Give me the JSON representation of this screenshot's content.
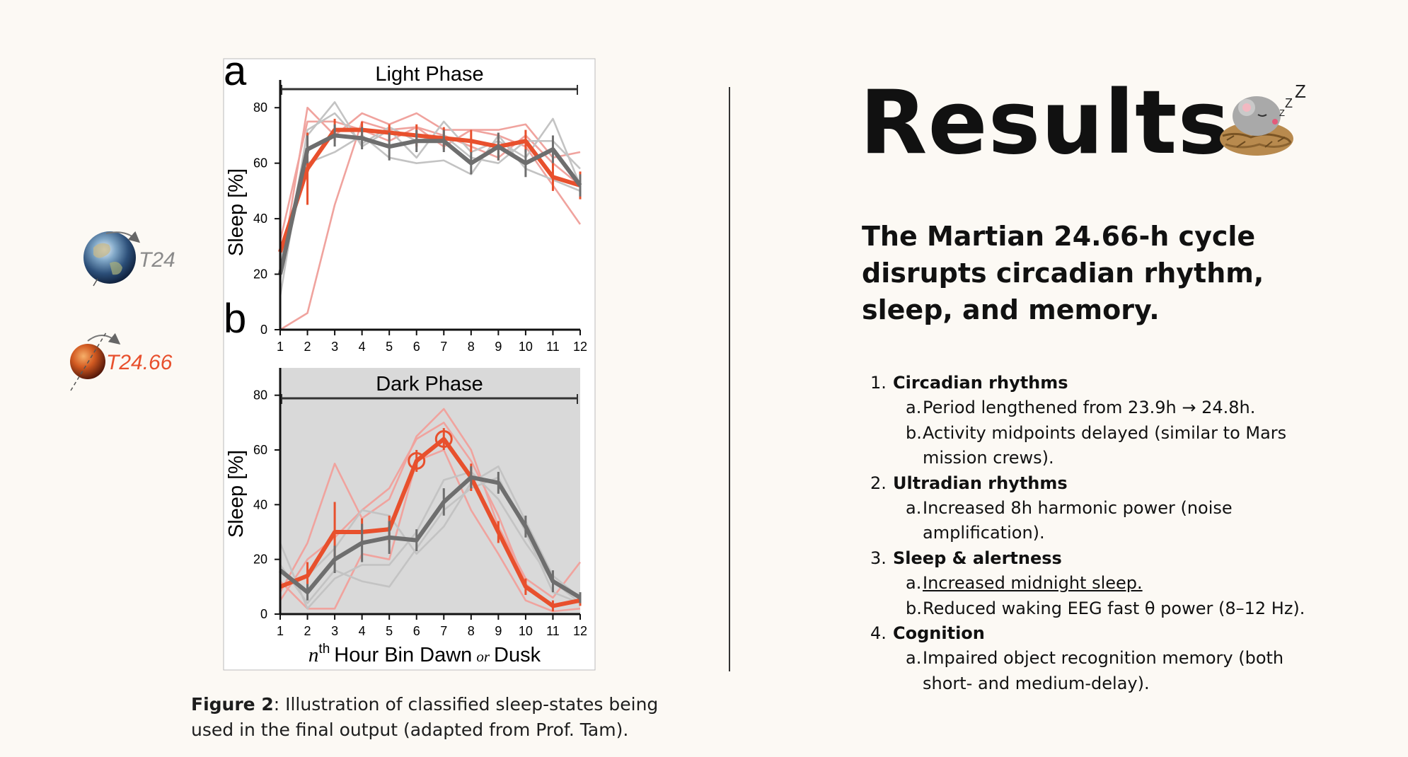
{
  "results_title": "Results",
  "subtitle": "The Martian 24.66-h cycle disrupts circadian rhythm, sleep, and memory.",
  "findings": [
    {
      "num": "1.",
      "title": "Circadian rhythms",
      "items": [
        {
          "letter": "a.",
          "text": "Period lengthened from 23.9h → 24.8h."
        },
        {
          "letter": "b.",
          "text": "Activity midpoints delayed (similar to Mars mission crews)."
        }
      ]
    },
    {
      "num": "2.",
      "title": "Ultradian rhythms",
      "items": [
        {
          "letter": "a.",
          "text": "Increased 8h harmonic power (noise amplification)."
        }
      ]
    },
    {
      "num": "3.",
      "title": "Sleep & alertness",
      "items": [
        {
          "letter": "a.",
          "text": "Increased midnight sleep.",
          "underline": true
        },
        {
          "letter": "b.",
          "text": "Reduced waking EEG fast θ power (8–12 Hz)."
        }
      ]
    },
    {
      "num": "4.",
      "title": "Cognition",
      "items": [
        {
          "letter": "a.",
          "text": "Impaired object recognition memory (both short- and medium-delay)."
        }
      ]
    }
  ],
  "caption": {
    "label": "Figure 2",
    "text": ": Illustration of classified sleep-states being used in the final output (adapted from Prof. Tam)."
  },
  "legend": {
    "earth_label": "T24",
    "mars_label": "T24.66"
  },
  "mouse_zzz": "Z",
  "colors": {
    "mars": "#e8502d",
    "mars_light": "#f0a39e",
    "earth": "#6e6e6e",
    "earth_light": "#c3c3c3",
    "dark_bg": "#d9d9d9"
  },
  "chart_data": [
    {
      "type": "line",
      "panel_letter": "a",
      "title": "Light Phase",
      "ylabel": "Sleep [%]",
      "xlabel": "",
      "ylim": [
        0,
        90
      ],
      "yticks": [
        0,
        20,
        40,
        60,
        80
      ],
      "x": [
        1,
        2,
        3,
        4,
        5,
        6,
        7,
        8,
        9,
        10,
        11,
        12
      ],
      "dark_background": false,
      "series": [
        {
          "group": "T24.66",
          "role": "mean",
          "values": [
            28,
            58,
            72,
            72,
            71,
            70,
            69,
            68,
            66,
            68,
            55,
            52
          ],
          "errors": [
            3,
            13,
            4,
            3,
            3,
            4,
            4,
            4,
            5,
            4,
            5,
            5
          ]
        },
        {
          "group": "T24",
          "role": "mean",
          "values": [
            20,
            65,
            70,
            69,
            66,
            68,
            68,
            60,
            66,
            60,
            65,
            52
          ],
          "errors": [
            3,
            5,
            4,
            4,
            5,
            4,
            4,
            4,
            5,
            5,
            5,
            4
          ]
        },
        {
          "group": "T24.66",
          "role": "individual",
          "values": [
            20,
            80,
            70,
            78,
            74,
            78,
            72,
            72,
            72,
            74,
            62,
            64
          ]
        },
        {
          "group": "T24.66",
          "role": "individual",
          "values": [
            0,
            6,
            45,
            75,
            72,
            73,
            70,
            66,
            62,
            70,
            60,
            52
          ]
        },
        {
          "group": "T24.66",
          "role": "individual",
          "values": [
            32,
            75,
            75,
            72,
            68,
            73,
            66,
            72,
            70,
            66,
            52,
            38
          ]
        },
        {
          "group": "T24",
          "role": "individual",
          "values": [
            18,
            70,
            82,
            66,
            72,
            62,
            75,
            64,
            68,
            62,
            76,
            52
          ]
        },
        {
          "group": "T24",
          "role": "individual",
          "values": [
            25,
            60,
            64,
            70,
            62,
            60,
            61,
            56,
            70,
            58,
            54,
            50
          ]
        },
        {
          "group": "T24",
          "role": "individual",
          "values": [
            12,
            72,
            78,
            67,
            73,
            68,
            70,
            62,
            60,
            68,
            68,
            58
          ]
        }
      ]
    },
    {
      "type": "line",
      "panel_letter": "b",
      "title": "Dark Phase",
      "ylabel": "Sleep [%]",
      "xlabel_prefix": "n",
      "xlabel_sup": "th",
      "xlabel_main": "Hour Bin Dawn",
      "xlabel_or": "or",
      "xlabel_end": "Dusk",
      "ylim": [
        0,
        90
      ],
      "yticks": [
        0,
        20,
        40,
        60,
        80
      ],
      "x": [
        1,
        2,
        3,
        4,
        5,
        6,
        7,
        8,
        9,
        10,
        11,
        12
      ],
      "dark_background": true,
      "circled_points": [
        {
          "x": 6,
          "y": 56
        },
        {
          "x": 7,
          "y": 64
        }
      ],
      "series": [
        {
          "group": "T24.66",
          "role": "mean",
          "values": [
            10,
            14,
            30,
            30,
            31,
            56,
            64,
            50,
            30,
            10,
            3,
            5
          ],
          "errors": [
            3,
            5,
            11,
            5,
            5,
            4,
            4,
            5,
            4,
            3,
            2,
            2
          ]
        },
        {
          "group": "T24",
          "role": "mean",
          "values": [
            16,
            8,
            20,
            26,
            28,
            27,
            41,
            50,
            48,
            32,
            12,
            6
          ],
          "errors": [
            3,
            3,
            5,
            7,
            6,
            4,
            5,
            4,
            4,
            4,
            4,
            2
          ]
        },
        {
          "group": "T24.66",
          "role": "individual",
          "values": [
            8,
            26,
            55,
            35,
            42,
            65,
            75,
            60,
            32,
            13,
            6,
            19
          ]
        },
        {
          "group": "T24.66",
          "role": "individual",
          "values": [
            12,
            2,
            2,
            22,
            20,
            56,
            60,
            38,
            22,
            5,
            1,
            2
          ]
        },
        {
          "group": "T24.66",
          "role": "individual",
          "values": [
            5,
            20,
            28,
            38,
            46,
            64,
            70,
            56,
            36,
            11,
            3,
            5
          ]
        },
        {
          "group": "T24",
          "role": "individual",
          "values": [
            26,
            2,
            13,
            18,
            18,
            30,
            49,
            52,
            42,
            26,
            12,
            4
          ]
        },
        {
          "group": "T24",
          "role": "individual",
          "values": [
            10,
            14,
            24,
            38,
            36,
            22,
            32,
            48,
            54,
            34,
            14,
            6
          ]
        },
        {
          "group": "T24",
          "role": "individual",
          "values": [
            18,
            4,
            16,
            12,
            10,
            24,
            38,
            46,
            50,
            30,
            8,
            4
          ]
        }
      ]
    }
  ]
}
